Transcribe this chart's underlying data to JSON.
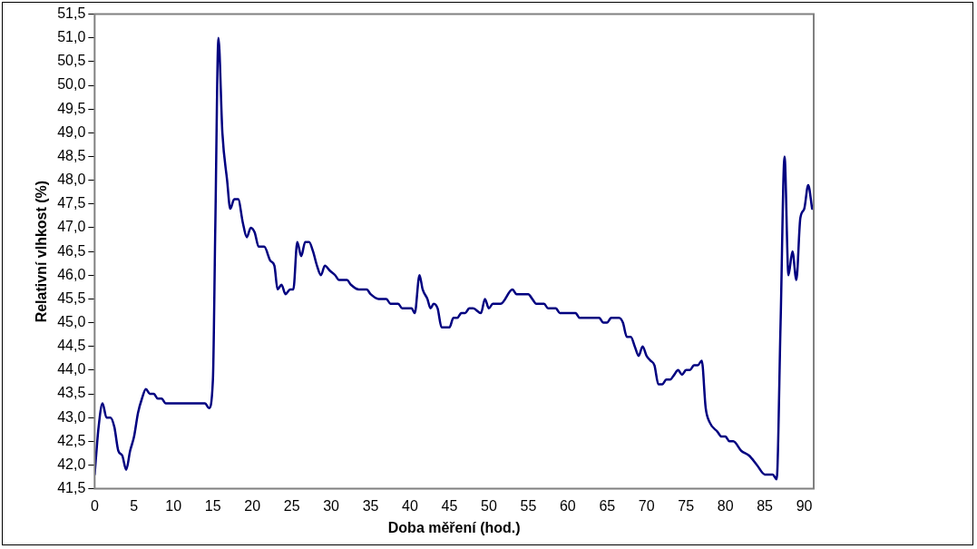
{
  "chart_data": {
    "type": "line",
    "xlabel": "Doba měření (hod.)",
    "ylabel": "Relativní vlhkost (%)",
    "xlim": [
      0,
      91.2
    ],
    "xticks": [
      0,
      5,
      10,
      15,
      20,
      25,
      30,
      35,
      40,
      45,
      50,
      55,
      60,
      65,
      70,
      75,
      80,
      85,
      90
    ],
    "ylim": [
      41.5,
      51.5
    ],
    "yticks": [
      {
        "value": 41.5,
        "label": "41,5"
      },
      {
        "value": 42,
        "label": "42,0"
      },
      {
        "value": 42.5,
        "label": "42,5"
      },
      {
        "value": 43,
        "label": "43,0"
      },
      {
        "value": 43.5,
        "label": "43,5"
      },
      {
        "value": 44,
        "label": "44,0"
      },
      {
        "value": 44.5,
        "label": "44,5"
      },
      {
        "value": 45,
        "label": "45,0"
      },
      {
        "value": 45.5,
        "label": "45,5"
      },
      {
        "value": 46,
        "label": "46,0"
      },
      {
        "value": 46.5,
        "label": "46,5"
      },
      {
        "value": 47,
        "label": "47,0"
      },
      {
        "value": 47.5,
        "label": "47,5"
      },
      {
        "value": 48,
        "label": "48,0"
      },
      {
        "value": 48.5,
        "label": "48,5"
      },
      {
        "value": 49,
        "label": "49,0"
      },
      {
        "value": 49.5,
        "label": "49,5"
      },
      {
        "value": 50,
        "label": "50,0"
      },
      {
        "value": 50.5,
        "label": "50,5"
      },
      {
        "value": 51,
        "label": "51,0"
      },
      {
        "value": 51.5,
        "label": "51,5"
      }
    ],
    "grid": false,
    "legend": false,
    "marker": "none",
    "line_style": "solid",
    "series": [
      {
        "color": "#000080",
        "x": [
          0,
          0.5,
          1,
          1.5,
          2,
          2.5,
          3,
          3.5,
          4,
          4.5,
          5,
          5.5,
          6,
          6.5,
          7,
          7.5,
          8,
          8.5,
          9,
          14,
          14.5,
          15,
          15.3,
          15.7,
          16.2,
          16.8,
          17.2,
          17.7,
          18.2,
          18.8,
          19.3,
          19.8,
          20.3,
          20.8,
          21.5,
          22.3,
          22.8,
          23.2,
          23.7,
          24.2,
          24.8,
          25.2,
          25.7,
          26.2,
          26.7,
          27.2,
          27.7,
          28.2,
          28.7,
          29.2,
          29.8,
          30.5,
          31,
          32,
          32.5,
          33.5,
          34.5,
          35,
          36,
          37,
          37.5,
          38.5,
          39,
          40.2,
          40.6,
          41.2,
          41.6,
          42.2,
          42.6,
          43,
          43.5,
          44,
          45,
          45.5,
          46,
          46.5,
          47,
          47.5,
          48,
          49,
          49.5,
          50,
          50.5,
          51.5,
          53,
          53.5,
          55,
          55.5,
          56,
          57,
          57.5,
          58.5,
          59,
          61,
          61.5,
          64,
          64.5,
          65,
          65.5,
          66.5,
          67,
          67.5,
          68,
          68.5,
          69,
          69.5,
          70,
          70.5,
          71,
          71.5,
          72,
          72.5,
          73,
          73.5,
          74,
          74.5,
          75,
          75.5,
          76,
          76.5,
          77,
          77.5,
          78,
          79,
          79.5,
          80,
          80.5,
          81,
          82,
          83,
          84,
          85,
          86,
          86.5,
          87,
          87.5,
          88,
          88.5,
          89,
          89.5,
          90,
          90.5,
          91
        ],
        "values": [
          41.8,
          42.8,
          43.3,
          43.0,
          43.0,
          42.8,
          42.3,
          42.2,
          41.9,
          42.3,
          42.6,
          43.1,
          43.4,
          43.6,
          43.5,
          43.5,
          43.4,
          43.4,
          43.3,
          43.3,
          43.2,
          43.8,
          47.0,
          51.0,
          49.0,
          48.0,
          47.4,
          47.6,
          47.6,
          47.1,
          46.8,
          47.0,
          46.9,
          46.6,
          46.6,
          46.3,
          46.2,
          45.7,
          45.8,
          45.6,
          45.7,
          45.7,
          46.7,
          46.4,
          46.7,
          46.7,
          46.5,
          46.2,
          46.0,
          46.2,
          46.1,
          46.0,
          45.9,
          45.9,
          45.8,
          45.7,
          45.7,
          45.6,
          45.5,
          45.5,
          45.4,
          45.4,
          45.3,
          45.3,
          45.2,
          46.0,
          45.7,
          45.5,
          45.3,
          45.4,
          45.3,
          44.9,
          44.9,
          45.1,
          45.1,
          45.2,
          45.2,
          45.3,
          45.3,
          45.2,
          45.5,
          45.3,
          45.4,
          45.4,
          45.7,
          45.6,
          45.6,
          45.5,
          45.4,
          45.4,
          45.3,
          45.3,
          45.2,
          45.2,
          45.1,
          45.1,
          45.0,
          45.0,
          45.1,
          45.1,
          45.0,
          44.7,
          44.7,
          44.5,
          44.3,
          44.5,
          44.3,
          44.2,
          44.1,
          43.7,
          43.7,
          43.8,
          43.8,
          43.9,
          44.0,
          43.9,
          44.0,
          44.0,
          44.1,
          44.1,
          44.2,
          43.2,
          42.9,
          42.7,
          42.6,
          42.6,
          42.5,
          42.5,
          42.3,
          42.2,
          42.0,
          41.8,
          41.8,
          41.7,
          45.0,
          48.5,
          46.0,
          46.5,
          45.9,
          47.2,
          47.4,
          47.9,
          47.4
        ]
      }
    ]
  }
}
